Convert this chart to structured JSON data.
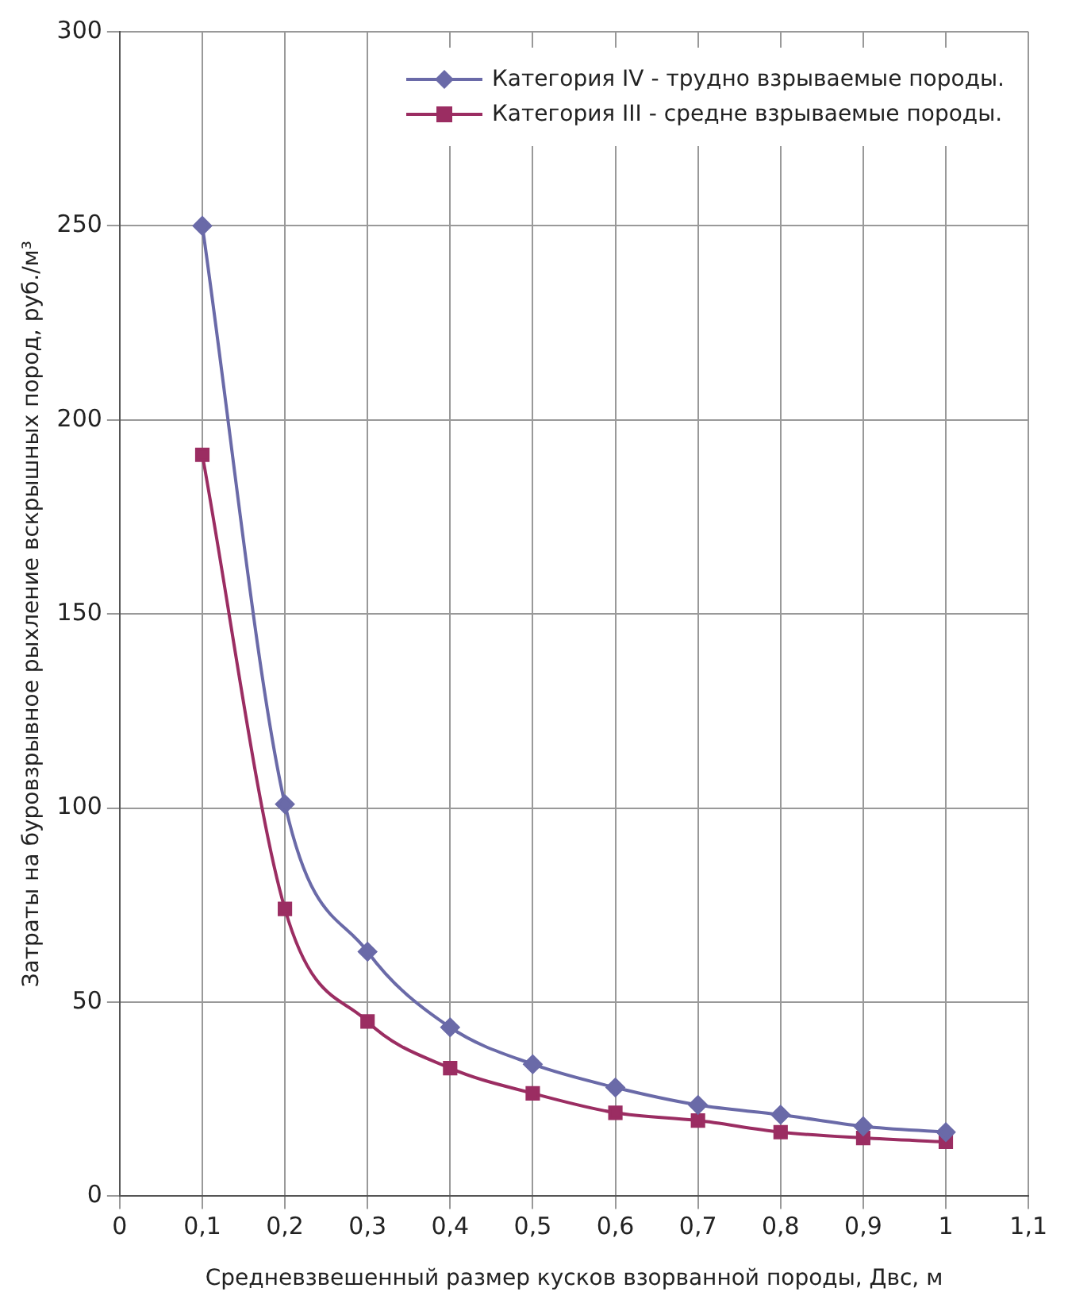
{
  "chart_data": {
    "type": "line",
    "xlabel": "Средневзвешенный размер кусков взорванной породы, Двс, м",
    "ylabel": "Затраты на буровзрывное рыхление вскрышных пород, руб./м³",
    "x": [
      0.1,
      0.2,
      0.3,
      0.4,
      0.5,
      0.6,
      0.7,
      0.8,
      0.9,
      1.0
    ],
    "series": [
      {
        "name": "Категория IV - трудно взрываемые породы.",
        "color": "#6a6aa8",
        "marker": "diamond",
        "values": [
          250,
          101,
          63,
          43.5,
          34,
          28,
          23.5,
          21,
          18,
          16.5
        ]
      },
      {
        "name": "Категория III - средне взрываемые породы.",
        "color": "#9b2d62",
        "marker": "square",
        "values": [
          191,
          74,
          45,
          33,
          26.5,
          21.5,
          19.5,
          16.5,
          15,
          14
        ]
      }
    ],
    "xlim": [
      0,
      1.1
    ],
    "xticks": [
      {
        "value": 0,
        "label": "0"
      },
      {
        "value": 0.1,
        "label": "0,1"
      },
      {
        "value": 0.2,
        "label": "0,2"
      },
      {
        "value": 0.3,
        "label": "0,3"
      },
      {
        "value": 0.4,
        "label": "0,4"
      },
      {
        "value": 0.5,
        "label": "0,5"
      },
      {
        "value": 0.6,
        "label": "0,6"
      },
      {
        "value": 0.7,
        "label": "0,7"
      },
      {
        "value": 0.8,
        "label": "0,8"
      },
      {
        "value": 0.9,
        "label": "0,9"
      },
      {
        "value": 1,
        "label": "1"
      },
      {
        "value": 1.1,
        "label": "1,1"
      }
    ],
    "ylim": [
      0,
      300
    ],
    "yticks": [
      0,
      50,
      100,
      150,
      200,
      250,
      300
    ],
    "grid": true,
    "legend": "top right"
  }
}
